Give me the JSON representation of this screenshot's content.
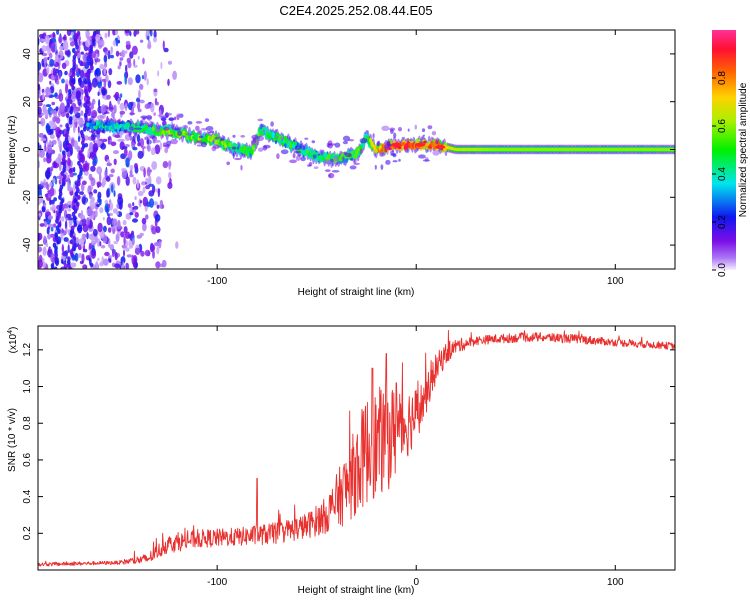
{
  "figure": {
    "title": "C2E4.2025.252.08.44.E05"
  },
  "chart_data": [
    {
      "type": "heatmap",
      "name": "spectrogram",
      "xlabel": "Height of straight line (km)",
      "ylabel": "Frequency (Hz)",
      "xlim": [
        -190,
        130
      ],
      "ylim": [
        -50,
        50
      ],
      "xticks": [
        -100,
        0,
        100
      ],
      "xtick_labels": [
        "-100",
        "",
        "100"
      ],
      "yticks": [
        -40,
        -20,
        0,
        20,
        40
      ],
      "ytick_labels": [
        "-40",
        "-20",
        "0",
        "20",
        "40"
      ],
      "colorbar": {
        "label": "Normalized spectral amplitude",
        "range": [
          0.0,
          1.0
        ],
        "ticks": [
          0.0,
          0.2,
          0.4,
          0.6,
          0.8
        ],
        "tick_labels": [
          "0.0",
          "0.2",
          "0.4",
          "0.6",
          "0.8"
        ]
      },
      "ridge": {
        "description": "main spectral line: frequency (Hz) vs height (km)",
        "x": [
          -160,
          -140,
          -120,
          -110,
          -100,
          -90,
          -83,
          -78,
          -70,
          -60,
          -50,
          -40,
          -30,
          -25,
          -20,
          -10,
          0,
          10,
          20,
          40,
          60,
          80,
          100,
          130
        ],
        "y": [
          10,
          9,
          7,
          5,
          4,
          0,
          -1,
          8,
          5,
          1,
          -3,
          -4,
          -2,
          5,
          0,
          2,
          2,
          2,
          0,
          0,
          0,
          0,
          0,
          0
        ],
        "amplitude": [
          0.35,
          0.45,
          0.55,
          0.55,
          0.6,
          0.45,
          0.5,
          0.5,
          0.45,
          0.45,
          0.45,
          0.5,
          0.5,
          0.45,
          0.75,
          0.9,
          0.85,
          0.8,
          0.65,
          0.6,
          0.6,
          0.6,
          0.6,
          0.6
        ]
      },
      "noise_region_xlim": [
        -190,
        -135
      ]
    },
    {
      "type": "line",
      "name": "snr",
      "xlabel": "Height of straight line (km)",
      "ylabel": "SNR (10 * v/v)",
      "multiplier": "(x10",
      "multiplier_exp": "4",
      "multiplier_close": ")",
      "xlim": [
        -190,
        130
      ],
      "ylim": [
        0,
        1.33
      ],
      "xticks": [
        -100,
        0,
        100
      ],
      "xtick_labels": [
        "-100",
        "0",
        "100"
      ],
      "yticks": [
        0.2,
        0.4,
        0.6,
        0.8,
        1.0,
        1.2
      ],
      "ytick_labels": [
        "0.2",
        "0.4",
        "0.6",
        "0.8",
        "1.0",
        "1.2"
      ],
      "color": "#e8312f",
      "envelope": {
        "description": "approximate SNR baseline (x1e4) and noise spread vs height (km)",
        "x": [
          -190,
          -150,
          -135,
          -125,
          -110,
          -90,
          -70,
          -55,
          -45,
          -35,
          -25,
          -15,
          -10,
          -5,
          0,
          5,
          10,
          15,
          20,
          30,
          40,
          60,
          80,
          100,
          130
        ],
        "y": [
          0.03,
          0.04,
          0.06,
          0.14,
          0.17,
          0.18,
          0.2,
          0.24,
          0.3,
          0.45,
          0.65,
          0.72,
          0.75,
          0.8,
          0.85,
          0.95,
          1.1,
          1.18,
          1.22,
          1.25,
          1.26,
          1.27,
          1.26,
          1.24,
          1.22
        ],
        "spread": [
          0.01,
          0.01,
          0.03,
          0.05,
          0.05,
          0.05,
          0.06,
          0.07,
          0.1,
          0.2,
          0.3,
          0.3,
          0.25,
          0.2,
          0.15,
          0.1,
          0.08,
          0.06,
          0.04,
          0.025,
          0.025,
          0.025,
          0.025,
          0.02,
          0.02
        ]
      },
      "spikes": {
        "x": [
          -80,
          -22,
          -15,
          -10
        ],
        "y": [
          0.5,
          1.1,
          1.18,
          1.02
        ]
      }
    }
  ]
}
